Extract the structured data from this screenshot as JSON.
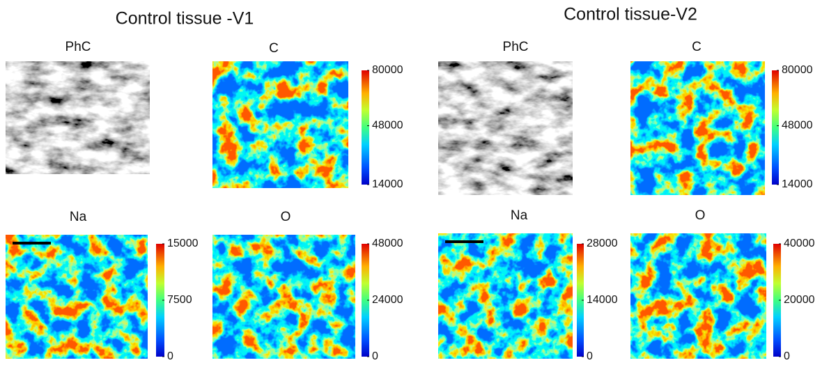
{
  "groups": [
    {
      "title": "Control  tissue -V1",
      "panels": [
        {
          "label": "PhC"
        },
        {
          "label": "C",
          "colorbar": {
            "lim": [
              14000,
              80000
            ],
            "ticks": [
              14000,
              48000,
              80000
            ]
          }
        },
        {
          "label": "Na",
          "colorbar": {
            "lim": [
              0,
              15000
            ],
            "ticks": [
              0,
              7500,
              15000
            ]
          }
        },
        {
          "label": "O",
          "colorbar": {
            "lim": [
              0,
              48000
            ],
            "ticks": [
              0,
              24000,
              48000
            ]
          }
        }
      ]
    },
    {
      "title": "Control tissue-V2",
      "panels": [
        {
          "label": "PhC"
        },
        {
          "label": "C",
          "colorbar": {
            "lim": [
              14000,
              80000
            ],
            "ticks": [
              14000,
              48000,
              80000
            ]
          }
        },
        {
          "label": "Na",
          "colorbar": {
            "lim": [
              0,
              28000
            ],
            "ticks": [
              0,
              14000,
              28000
            ]
          }
        },
        {
          "label": "O",
          "colorbar": {
            "lim": [
              0,
              40000
            ],
            "ticks": [
              0,
              20000,
              40000
            ]
          }
        }
      ]
    }
  ]
}
